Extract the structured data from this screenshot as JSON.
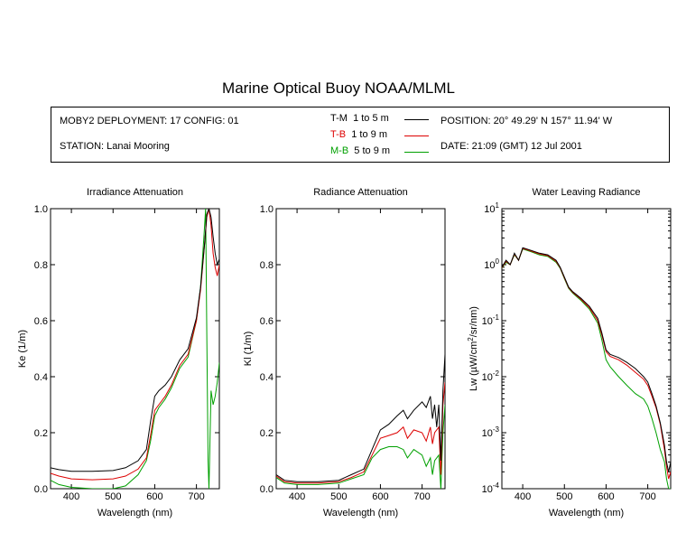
{
  "title": "Marine Optical Buoy NOAA/MLML",
  "info": {
    "deployment": "MOBY2 DEPLOYMENT: 17 CONFIG: 01",
    "station": "STATION: Lanai Mooring",
    "position": "POSITION: 20° 49.29' N   157° 11.94' W",
    "date": "DATE: 21:09 (GMT) 12 Jul 2001"
  },
  "legend": [
    {
      "code": "T-M",
      "range": "1 to 5  m",
      "color": "#000000"
    },
    {
      "code": "T-B",
      "range": "1 to 9  m",
      "color": "#dd0000"
    },
    {
      "code": "M-B",
      "range": "5 to 9  m",
      "color": "#00a000"
    }
  ],
  "chart_data": [
    {
      "type": "line",
      "title": "Irradiance Attenuation",
      "xlabel": "Wavelength (nm)",
      "ylabel": "Ke  (1/m)",
      "xlim": [
        350,
        755
      ],
      "ylim": [
        0,
        1.0
      ],
      "xticks": [
        "400",
        "500",
        "600",
        "700"
      ],
      "xtick_values": [
        400,
        500,
        600,
        700
      ],
      "yticks": [
        "0.0",
        "0.2",
        "0.4",
        "0.6",
        "0.8",
        "1.0"
      ],
      "ytick_values": [
        0,
        0.2,
        0.4,
        0.6,
        0.8,
        1.0
      ],
      "series": [
        {
          "name": "T-M",
          "color": "#000000",
          "x": [
            350,
            370,
            400,
            450,
            500,
            530,
            560,
            580,
            590,
            600,
            610,
            625,
            640,
            660,
            680,
            700,
            710,
            720,
            725,
            730,
            735,
            740,
            745,
            750,
            755
          ],
          "y": [
            0.075,
            0.068,
            0.062,
            0.062,
            0.065,
            0.075,
            0.1,
            0.14,
            0.24,
            0.33,
            0.35,
            0.37,
            0.4,
            0.46,
            0.5,
            0.61,
            0.72,
            0.88,
            0.98,
            1.0,
            0.97,
            0.9,
            0.84,
            0.8,
            0.82
          ]
        },
        {
          "name": "T-B",
          "color": "#dd0000",
          "x": [
            350,
            370,
            400,
            450,
            500,
            530,
            560,
            580,
            590,
            600,
            610,
            625,
            640,
            660,
            680,
            700,
            710,
            720,
            725,
            730,
            735,
            740,
            745,
            750,
            755
          ],
          "y": [
            0.055,
            0.045,
            0.035,
            0.032,
            0.035,
            0.045,
            0.07,
            0.11,
            0.19,
            0.28,
            0.3,
            0.33,
            0.37,
            0.44,
            0.48,
            0.6,
            0.71,
            0.88,
            0.97,
            1.0,
            0.94,
            0.84,
            0.79,
            0.76,
            0.8
          ]
        },
        {
          "name": "M-B",
          "color": "#00a000",
          "x": [
            350,
            370,
            400,
            450,
            500,
            530,
            560,
            580,
            590,
            600,
            610,
            625,
            640,
            660,
            680,
            700,
            710,
            718,
            722,
            725,
            728,
            730,
            735,
            740,
            745,
            750,
            755
          ],
          "y": [
            0.03,
            0.015,
            0.005,
            0.0,
            0.0,
            0.01,
            0.05,
            0.1,
            0.17,
            0.26,
            0.29,
            0.32,
            0.36,
            0.43,
            0.47,
            0.6,
            0.72,
            0.9,
            1.0,
            0.55,
            0.1,
            0.0,
            0.35,
            0.3,
            0.33,
            0.38,
            0.45
          ]
        }
      ]
    },
    {
      "type": "line",
      "title": "Radiance Attenuation",
      "xlabel": "Wavelength (nm)",
      "ylabel": "Kl  (1/m)",
      "xlim": [
        350,
        755
      ],
      "ylim": [
        0,
        1.0
      ],
      "xticks": [
        "400",
        "500",
        "600",
        "700"
      ],
      "xtick_values": [
        400,
        500,
        600,
        700
      ],
      "yticks": [
        "0.0",
        "0.2",
        "0.4",
        "0.6",
        "0.8",
        "1.0"
      ],
      "ytick_values": [
        0,
        0.2,
        0.4,
        0.6,
        0.8,
        1.0
      ],
      "series": [
        {
          "name": "T-M",
          "color": "#000000",
          "x": [
            350,
            370,
            400,
            450,
            500,
            530,
            560,
            580,
            600,
            620,
            640,
            655,
            665,
            680,
            700,
            710,
            720,
            725,
            730,
            735,
            740,
            745,
            750,
            755
          ],
          "y": [
            0.05,
            0.03,
            0.025,
            0.025,
            0.03,
            0.05,
            0.07,
            0.14,
            0.21,
            0.23,
            0.26,
            0.28,
            0.25,
            0.28,
            0.31,
            0.29,
            0.33,
            0.25,
            0.3,
            0.22,
            0.3,
            0.1,
            0.35,
            0.48
          ]
        },
        {
          "name": "T-B",
          "color": "#dd0000",
          "x": [
            350,
            370,
            400,
            450,
            500,
            530,
            560,
            580,
            600,
            620,
            640,
            655,
            665,
            680,
            700,
            710,
            720,
            725,
            730,
            740,
            745,
            750,
            755
          ],
          "y": [
            0.045,
            0.025,
            0.02,
            0.02,
            0.025,
            0.04,
            0.06,
            0.12,
            0.18,
            0.19,
            0.2,
            0.22,
            0.18,
            0.21,
            0.2,
            0.17,
            0.22,
            0.16,
            0.2,
            0.22,
            0.05,
            0.3,
            0.38
          ]
        },
        {
          "name": "M-B",
          "color": "#00a000",
          "x": [
            350,
            370,
            400,
            450,
            500,
            530,
            560,
            580,
            600,
            620,
            640,
            655,
            665,
            680,
            700,
            710,
            720,
            725,
            730,
            740,
            745,
            750,
            755
          ],
          "y": [
            0.04,
            0.02,
            0.015,
            0.015,
            0.02,
            0.035,
            0.05,
            0.11,
            0.14,
            0.15,
            0.15,
            0.14,
            0.11,
            0.14,
            0.12,
            0.08,
            0.11,
            0.05,
            0.1,
            0.12,
            0.0,
            0.2,
            0.3
          ]
        }
      ]
    },
    {
      "type": "line",
      "title": "Water Leaving Radiance",
      "xlabel": "Wavelength (nm)",
      "ylabel": "Lw  (µW/cm²/sr/nm)",
      "yscale": "log",
      "xlim": [
        350,
        755
      ],
      "ylim": [
        0.0001,
        10
      ],
      "xticks": [
        "400",
        "500",
        "600",
        "700"
      ],
      "xtick_values": [
        400,
        500,
        600,
        700
      ],
      "yticks": [
        "10¹",
        "10⁰",
        "10⁻¹",
        "10⁻²",
        "10⁻³",
        "10⁻⁴"
      ],
      "ytick_values": [
        10,
        1,
        0.1,
        0.01,
        0.001,
        0.0001
      ],
      "series": [
        {
          "name": "T-M",
          "color": "#000000",
          "x": [
            350,
            360,
            370,
            380,
            390,
            400,
            410,
            420,
            440,
            460,
            480,
            490,
            500,
            510,
            520,
            540,
            560,
            570,
            580,
            590,
            600,
            610,
            630,
            650,
            670,
            690,
            700,
            710,
            720,
            730,
            740,
            745,
            750,
            755
          ],
          "y": [
            0.9,
            1.2,
            1.0,
            1.6,
            1.2,
            2.0,
            1.9,
            1.8,
            1.6,
            1.5,
            1.2,
            0.9,
            0.6,
            0.4,
            0.33,
            0.25,
            0.18,
            0.14,
            0.11,
            0.06,
            0.03,
            0.025,
            0.022,
            0.018,
            0.014,
            0.01,
            0.008,
            0.005,
            0.003,
            0.0015,
            0.0006,
            0.0003,
            0.0002,
            0.0003
          ]
        },
        {
          "name": "T-B",
          "color": "#dd0000",
          "x": [
            350,
            360,
            370,
            380,
            390,
            400,
            410,
            420,
            440,
            460,
            480,
            490,
            500,
            510,
            520,
            540,
            560,
            570,
            580,
            590,
            600,
            610,
            630,
            650,
            670,
            690,
            700,
            710,
            720,
            730,
            740,
            745,
            750,
            755
          ],
          "y": [
            0.88,
            1.15,
            1.0,
            1.55,
            1.2,
            1.95,
            1.85,
            1.75,
            1.55,
            1.45,
            1.15,
            0.88,
            0.58,
            0.39,
            0.32,
            0.24,
            0.17,
            0.13,
            0.1,
            0.055,
            0.028,
            0.023,
            0.02,
            0.016,
            0.012,
            0.009,
            0.007,
            0.0045,
            0.0028,
            0.0014,
            0.0005,
            0.00025,
            0.00015,
            0.0002
          ]
        },
        {
          "name": "M-B",
          "color": "#00a000",
          "x": [
            350,
            360,
            370,
            380,
            390,
            400,
            410,
            420,
            440,
            460,
            480,
            490,
            500,
            510,
            520,
            540,
            560,
            570,
            580,
            590,
            600,
            610,
            630,
            650,
            670,
            690,
            700,
            710,
            720,
            730,
            740,
            745,
            750,
            755
          ],
          "y": [
            0.87,
            1.1,
            1.0,
            1.5,
            1.2,
            1.9,
            1.8,
            1.7,
            1.5,
            1.4,
            1.1,
            0.86,
            0.56,
            0.38,
            0.31,
            0.23,
            0.16,
            0.12,
            0.09,
            0.045,
            0.02,
            0.015,
            0.01,
            0.007,
            0.005,
            0.004,
            0.003,
            0.0018,
            0.001,
            0.0005,
            0.0003,
            0.00015,
            0.0001,
            0.0001
          ]
        }
      ]
    }
  ]
}
